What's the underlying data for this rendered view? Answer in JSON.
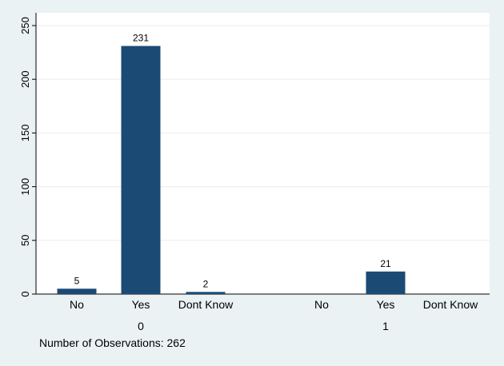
{
  "chart_data": {
    "type": "bar",
    "groups": [
      {
        "label": "0",
        "categories": [
          "No",
          "Yes",
          "Dont Know"
        ],
        "values": [
          5,
          231,
          2
        ]
      },
      {
        "label": "1",
        "categories": [
          "No",
          "Yes",
          "Dont Know"
        ],
        "values": [
          null,
          21,
          null
        ]
      }
    ],
    "ylim": [
      0,
      250
    ],
    "yticks": [
      0,
      50,
      100,
      150,
      200,
      250
    ],
    "grid": true,
    "title": "",
    "xlabel": "",
    "ylabel": "",
    "note": "Number of Observations: 262",
    "colors": {
      "bar": "#1b4a75",
      "grid": "#e6eef0",
      "axis": "#000000",
      "background": "#eaf2f3",
      "plot_background": "#ffffff"
    }
  }
}
